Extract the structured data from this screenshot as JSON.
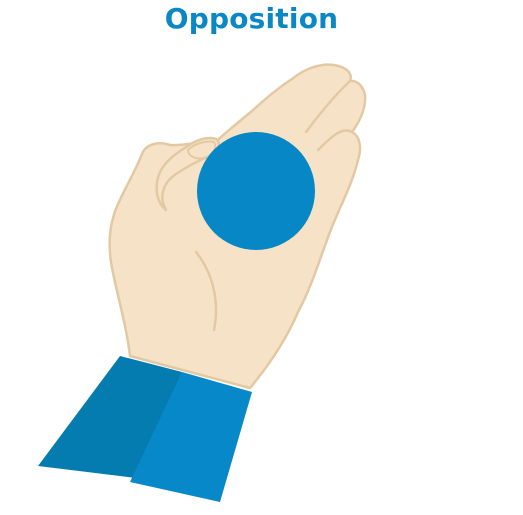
{
  "title": "Opposition",
  "colors": {
    "title": "#0a88c6",
    "skin": "#f6e3c7",
    "skin_outline": "#e3c9a3",
    "ball": "#0787c5",
    "sleeve_dark": "#047cb0",
    "sleeve_light": "#0788c8"
  },
  "icons": {
    "hand": "hand-icon",
    "ball": "ball-icon",
    "sleeve": "sleeve-icon"
  }
}
